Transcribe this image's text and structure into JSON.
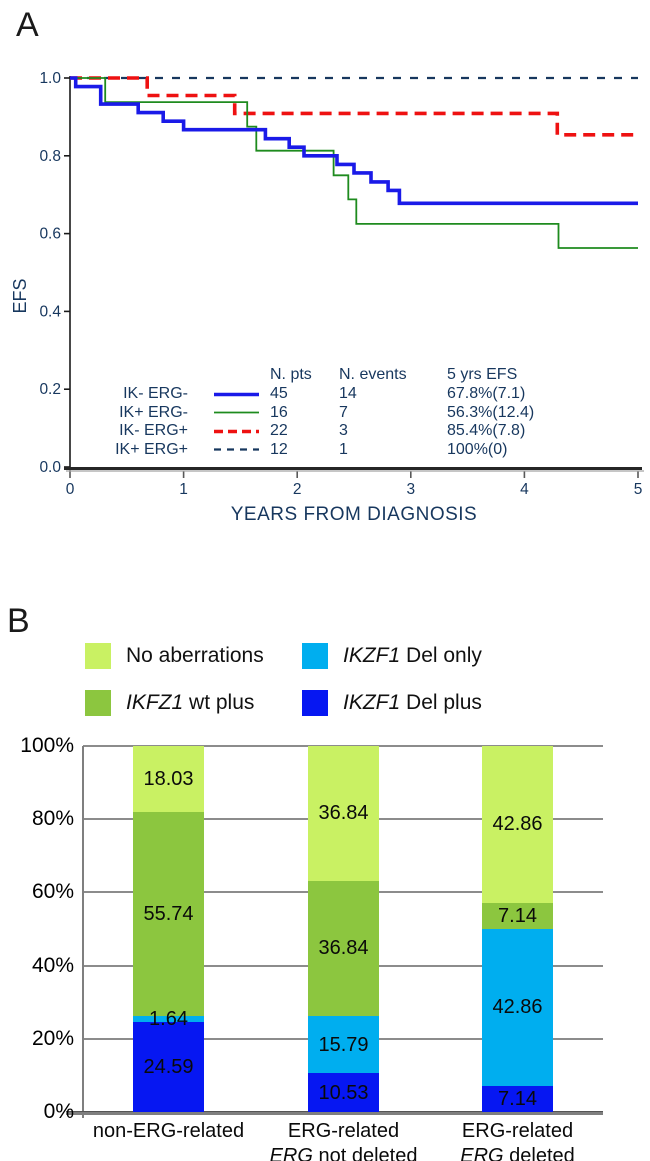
{
  "panel_a": {
    "label": "A"
  },
  "panel_b": {
    "label": "B"
  },
  "chart_data": [
    {
      "type": "line",
      "subtype": "kaplan-meier-step",
      "title": "",
      "xlabel": "YEARS FROM DIAGNOSIS",
      "ylabel": "EFS",
      "xlim": [
        0,
        5
      ],
      "ylim": [
        0.0,
        1.0
      ],
      "xticks": [
        0,
        1,
        2,
        3,
        4,
        5
      ],
      "yticks": [
        "0.0",
        "0.2",
        "0.4",
        "0.6",
        "0.8",
        "1.0"
      ],
      "grid": false,
      "legend_position": "inside-bottom-center",
      "legend_headers": [
        "N. pts",
        "N. events",
        "5 yrs EFS"
      ],
      "series": [
        {
          "name": "IK- ERG-",
          "n_pts": 45,
          "n_events": 14,
          "efs_5yr": "67.8%(7.1)",
          "color": "#1a1ae8",
          "width": 3.6,
          "dash": null,
          "points": [
            [
              0,
              1.0
            ],
            [
              0.05,
              0.978
            ],
            [
              0.27,
              0.933
            ],
            [
              0.6,
              0.911
            ],
            [
              0.82,
              0.889
            ],
            [
              1.0,
              0.867
            ],
            [
              1.72,
              0.844
            ],
            [
              1.93,
              0.822
            ],
            [
              2.06,
              0.8
            ],
            [
              2.35,
              0.778
            ],
            [
              2.5,
              0.756
            ],
            [
              2.65,
              0.733
            ],
            [
              2.8,
              0.711
            ],
            [
              2.9,
              0.678
            ]
          ]
        },
        {
          "name": "IK+ ERG-",
          "n_pts": 16,
          "n_events": 7,
          "efs_5yr": "56.3%(12.4)",
          "color": "#1e8b1e",
          "width": 1.8,
          "dash": null,
          "points": [
            [
              0,
              1.0
            ],
            [
              0.31,
              0.938
            ],
            [
              1.56,
              0.875
            ],
            [
              1.64,
              0.813
            ],
            [
              2.32,
              0.75
            ],
            [
              2.45,
              0.688
            ],
            [
              2.52,
              0.625
            ],
            [
              4.3,
              0.563
            ]
          ]
        },
        {
          "name": "IK- ERG+",
          "n_pts": 22,
          "n_events": 3,
          "efs_5yr": "85.4%(7.8)",
          "color": "#ee1111",
          "width": 3.6,
          "dash": "12 7",
          "dash_legend": "9 5",
          "points": [
            [
              0,
              1.0
            ],
            [
              0.68,
              0.955
            ],
            [
              1.45,
              0.909
            ],
            [
              4.29,
              0.854
            ]
          ]
        },
        {
          "name": "IK+ ERG+",
          "n_pts": 12,
          "n_events": 1,
          "efs_5yr": "100%(0)",
          "color": "#17375e",
          "width": 2.2,
          "dash": "8 9",
          "dash_legend": "7 6",
          "points": [
            [
              0,
              1.0
            ]
          ]
        }
      ]
    },
    {
      "type": "bar",
      "stacked": true,
      "ylim": [
        0,
        100
      ],
      "grid": true,
      "yticks": [
        {
          "label": "0%",
          "value": 0
        },
        {
          "label": "20%",
          "value": 20
        },
        {
          "label": "40%",
          "value": 40
        },
        {
          "label": "60%",
          "value": 60
        },
        {
          "label": "80%",
          "value": 80
        },
        {
          "label": "100%",
          "value": 100
        }
      ],
      "categories": [
        {
          "lines": [
            [
              {
                "t": "non-ERG-related",
                "i": false
              }
            ]
          ]
        },
        {
          "lines": [
            [
              {
                "t": "ERG-related",
                "i": false
              }
            ],
            [
              {
                "t": "ERG",
                "i": true
              },
              {
                "t": " not deleted",
                "i": false
              }
            ]
          ]
        },
        {
          "lines": [
            [
              {
                "t": "ERG-related",
                "i": false
              }
            ],
            [
              {
                "t": "ERG",
                "i": true
              },
              {
                "t": " deleted",
                "i": false
              }
            ]
          ]
        }
      ],
      "series": [
        {
          "name": "IKZF1 Del plus",
          "color": "#0617f2",
          "values": [
            24.59,
            10.53,
            7.14
          ]
        },
        {
          "name": "IKZF1 Del only",
          "color": "#00aeef",
          "values": [
            1.64,
            15.79,
            42.86
          ]
        },
        {
          "name": "IKFZ1 wt plus",
          "color": "#8cc63f",
          "values": [
            55.74,
            36.84,
            7.14
          ]
        },
        {
          "name": "No aberrations",
          "color": "#c9f163",
          "values": [
            18.03,
            36.84,
            42.86
          ]
        }
      ],
      "legend": [
        {
          "segs": [
            {
              "t": "No aberrations",
              "i": false
            }
          ],
          "color": "#c9f163"
        },
        {
          "segs": [
            {
              "t": "IKZF1",
              "i": true
            },
            {
              "t": " Del only",
              "i": false
            }
          ],
          "color": "#00aeef"
        },
        {
          "segs": [
            {
              "t": "IKFZ1",
              "i": true
            },
            {
              "t": " wt plus",
              "i": false
            }
          ],
          "color": "#8cc63f"
        },
        {
          "segs": [
            {
              "t": "IKZF1",
              "i": true
            },
            {
              "t": " Del plus",
              "i": false
            }
          ],
          "color": "#0617f2"
        }
      ]
    }
  ]
}
